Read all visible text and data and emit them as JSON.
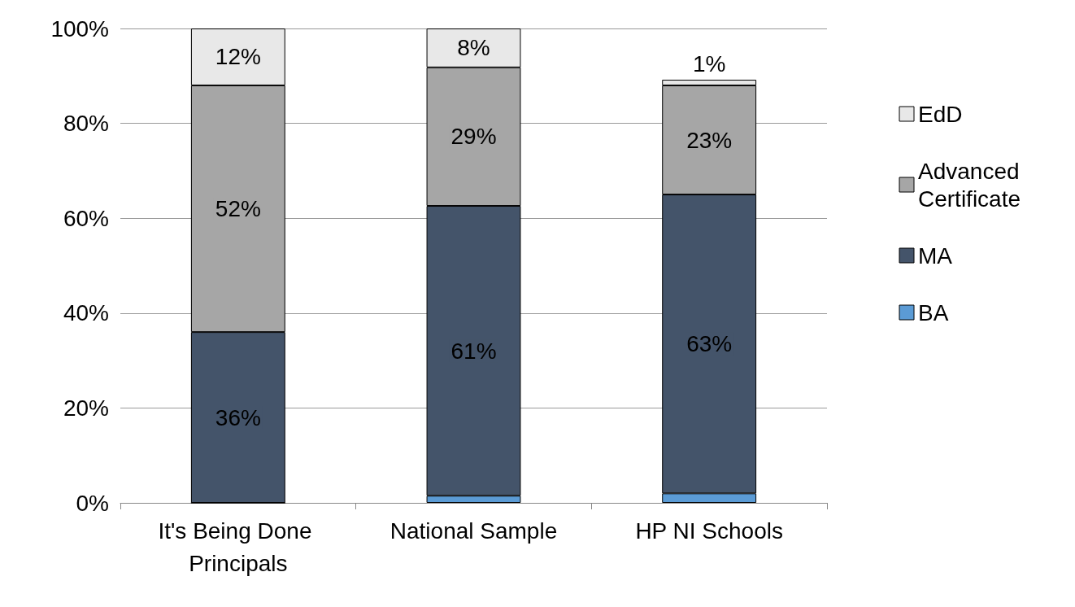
{
  "chart_data": {
    "type": "bar",
    "stacked": true,
    "categories": [
      "It's Being Done Principals",
      "National Sample",
      "HP NI Schools"
    ],
    "series": [
      {
        "name": "BA",
        "color": "#5b9bd5",
        "values": [
          0,
          1.5,
          2
        ],
        "value_labels": [
          null,
          null,
          null
        ]
      },
      {
        "name": "MA",
        "color": "#44546a",
        "values": [
          36,
          61.1,
          63
        ],
        "value_labels": [
          "36%",
          "61%",
          "63%"
        ]
      },
      {
        "name": "Advanced Certificate",
        "color": "#a6a6a6",
        "values": [
          52,
          29.2,
          23
        ],
        "value_labels": [
          "52%",
          "29%",
          "23%"
        ]
      },
      {
        "name": "EdD",
        "color": "#e8e8e8",
        "values": [
          12,
          8.2,
          1.2
        ],
        "value_labels": [
          "12%",
          "8%",
          "1%"
        ]
      }
    ],
    "ylim": [
      0,
      100
    ],
    "yticks": [
      {
        "value": 0,
        "label": "0%"
      },
      {
        "value": 20,
        "label": "20%"
      },
      {
        "value": 40,
        "label": "40%"
      },
      {
        "value": 60,
        "label": "60%"
      },
      {
        "value": 80,
        "label": "80%"
      },
      {
        "value": 100,
        "label": "100%"
      }
    ],
    "grid": "y",
    "legend": "right"
  }
}
